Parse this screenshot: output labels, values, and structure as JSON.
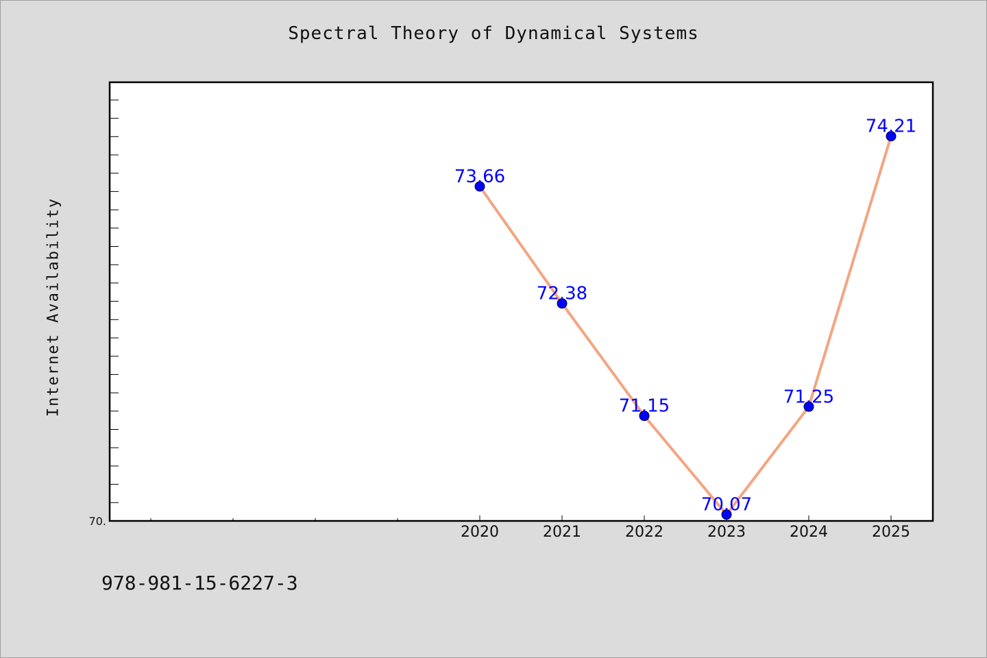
{
  "chart_data": {
    "type": "line",
    "title": "Spectral Theory of Dynamical Systems",
    "xlabel": "",
    "ylabel": "Internet Availability",
    "categories": [
      "2020",
      "2021",
      "2022",
      "2023",
      "2024",
      "2025"
    ],
    "series": [
      {
        "values": [
          73.66,
          72.38,
          71.15,
          70.07,
          71.25,
          74.21
        ],
        "data_labels": [
          "73.66",
          "72.38",
          "71.15",
          "70.07",
          "71.25",
          "74.21"
        ]
      }
    ],
    "y_min_label": "70.",
    "ylim": [
      70.0,
      74.8
    ],
    "grid": false,
    "line_color": "#f4a582",
    "marker_color": "#0000ff",
    "label_color": "#0000ff"
  },
  "footer": {
    "isbn": "978-981-15-6227-3"
  }
}
